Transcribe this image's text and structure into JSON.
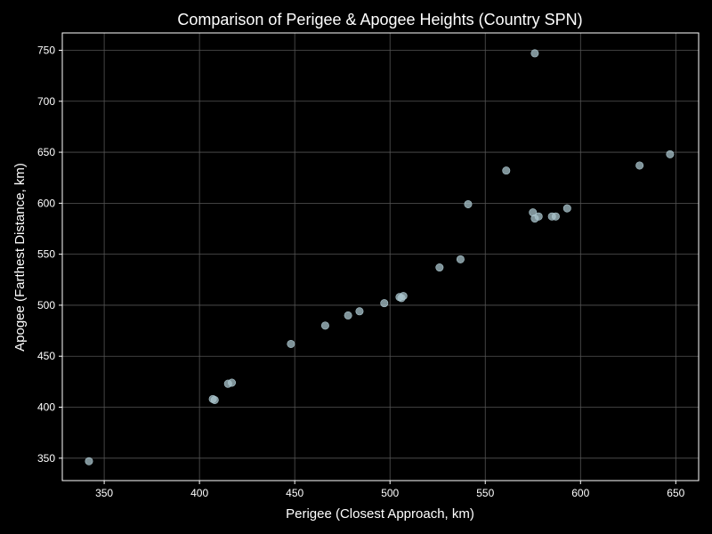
{
  "chart_data": {
    "type": "scatter",
    "title": "Comparison of Perigee & Apogee Heights (Country SPN)",
    "xlabel": "Perigee (Closest Approach, km)",
    "ylabel": "Apogee (Farthest Distance, km)",
    "xlim": [
      328,
      662
    ],
    "ylim": [
      328,
      767
    ],
    "xticks": [
      350,
      400,
      450,
      500,
      550,
      600,
      650
    ],
    "yticks": [
      350,
      400,
      450,
      500,
      550,
      600,
      650,
      700,
      750
    ],
    "grid": true,
    "colors": {
      "background": "#000000",
      "point": "#a9c4cc",
      "grid": "#555555",
      "axis": "#ffffff"
    },
    "points": [
      {
        "x": 342,
        "y": 347
      },
      {
        "x": 407,
        "y": 408
      },
      {
        "x": 408,
        "y": 407
      },
      {
        "x": 415,
        "y": 423
      },
      {
        "x": 417,
        "y": 424
      },
      {
        "x": 448,
        "y": 462
      },
      {
        "x": 466,
        "y": 480
      },
      {
        "x": 478,
        "y": 490
      },
      {
        "x": 484,
        "y": 494
      },
      {
        "x": 497,
        "y": 502
      },
      {
        "x": 505,
        "y": 508
      },
      {
        "x": 506,
        "y": 507
      },
      {
        "x": 507,
        "y": 509
      },
      {
        "x": 526,
        "y": 537
      },
      {
        "x": 537,
        "y": 545
      },
      {
        "x": 541,
        "y": 599
      },
      {
        "x": 561,
        "y": 632
      },
      {
        "x": 575,
        "y": 591
      },
      {
        "x": 576,
        "y": 585
      },
      {
        "x": 578,
        "y": 587
      },
      {
        "x": 585,
        "y": 587
      },
      {
        "x": 587,
        "y": 587
      },
      {
        "x": 593,
        "y": 595
      },
      {
        "x": 576,
        "y": 747
      },
      {
        "x": 631,
        "y": 637
      },
      {
        "x": 647,
        "y": 648
      }
    ]
  }
}
